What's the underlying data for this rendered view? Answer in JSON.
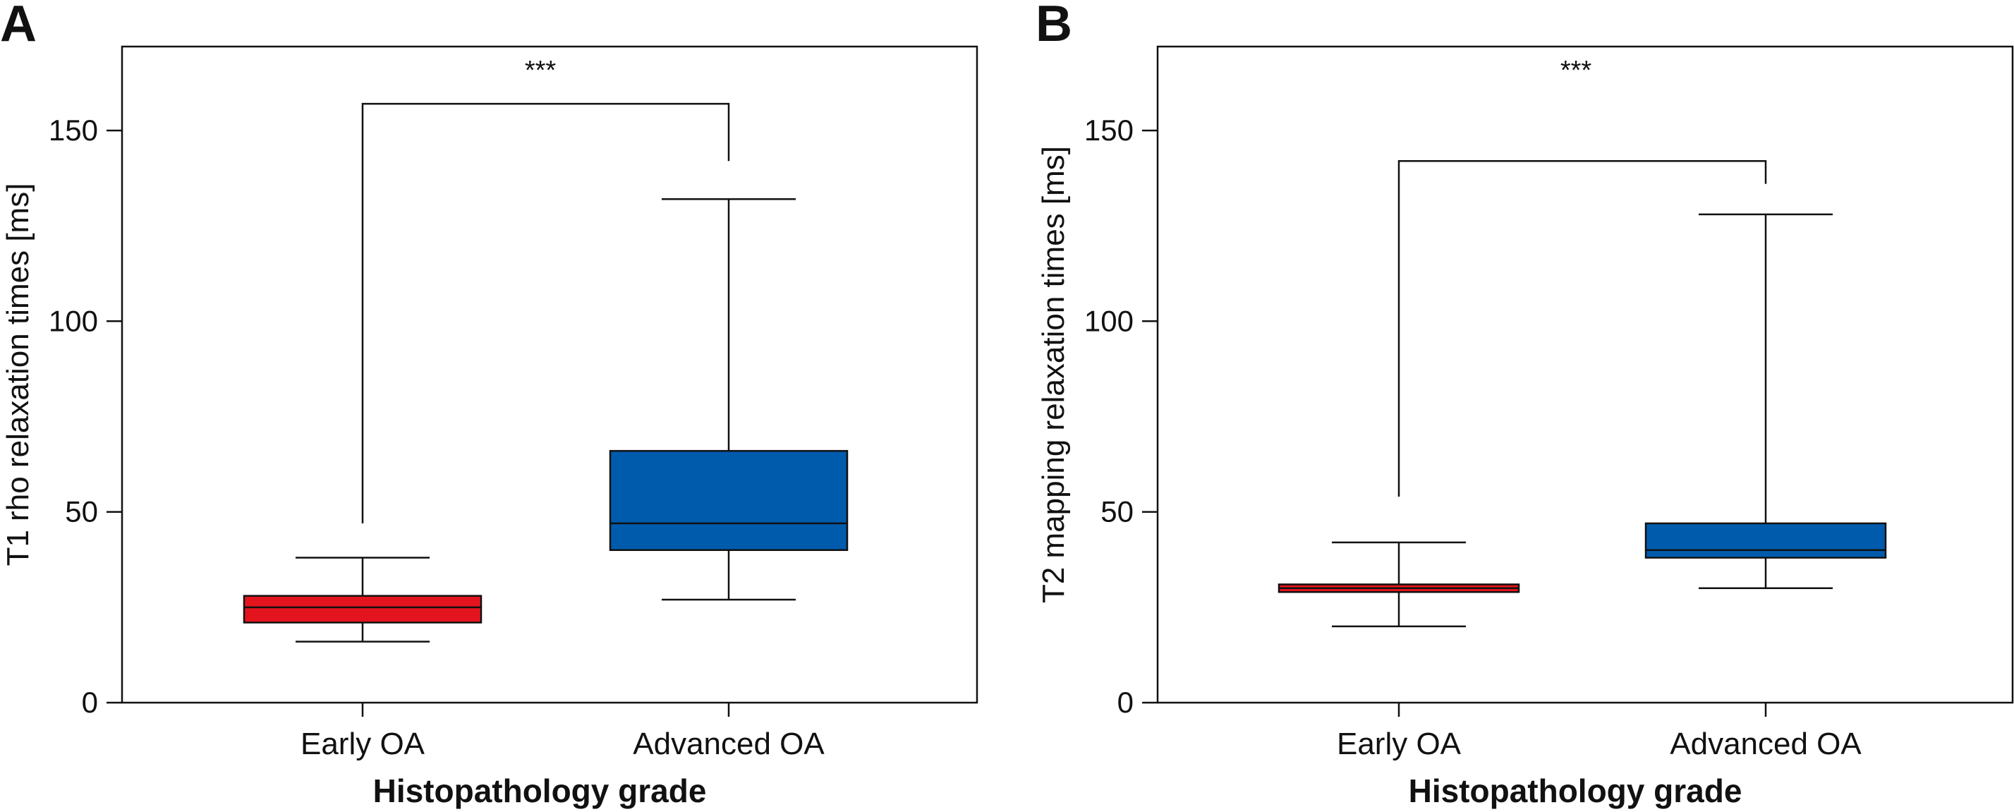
{
  "chart_data": [
    {
      "type": "box",
      "panel_label": "A",
      "xlabel": "Histopathology grade",
      "ylabel": "T1 rho relaxation times [ms]",
      "ylim": [
        0,
        172
      ],
      "yticks": [
        0,
        50,
        100,
        150
      ],
      "categories": [
        "Early OA",
        "Advanced OA"
      ],
      "colors": [
        "#e3141e",
        "#005bac"
      ],
      "boxes": [
        {
          "category": "Early OA",
          "whisker_low": 16,
          "q1": 21,
          "median": 25,
          "q3": 28,
          "whisker_high": 38
        },
        {
          "category": "Advanced OA",
          "whisker_low": 27,
          "q1": 40,
          "median": 47,
          "q3": 66,
          "whisker_high": 132
        }
      ],
      "significance": {
        "label": "***",
        "bar_y": 157,
        "left_end_y": 47,
        "right_end_y": 142
      }
    },
    {
      "type": "box",
      "panel_label": "B",
      "xlabel": "Histopathology grade",
      "ylabel": "T2 mapping relaxation times [ms]",
      "ylim": [
        0,
        172
      ],
      "yticks": [
        0,
        50,
        100,
        150
      ],
      "categories": [
        "Early OA",
        "Advanced OA"
      ],
      "colors": [
        "#e3141e",
        "#005bac"
      ],
      "boxes": [
        {
          "category": "Early OA",
          "whisker_low": 20,
          "q1": 29,
          "median": 30,
          "q3": 31,
          "whisker_high": 42
        },
        {
          "category": "Advanced OA",
          "whisker_low": 30,
          "q1": 38,
          "median": 40,
          "q3": 47,
          "whisker_high": 128
        }
      ],
      "significance": {
        "label": "***",
        "bar_y": 142,
        "left_end_y": 54,
        "right_end_y": 136
      }
    }
  ]
}
